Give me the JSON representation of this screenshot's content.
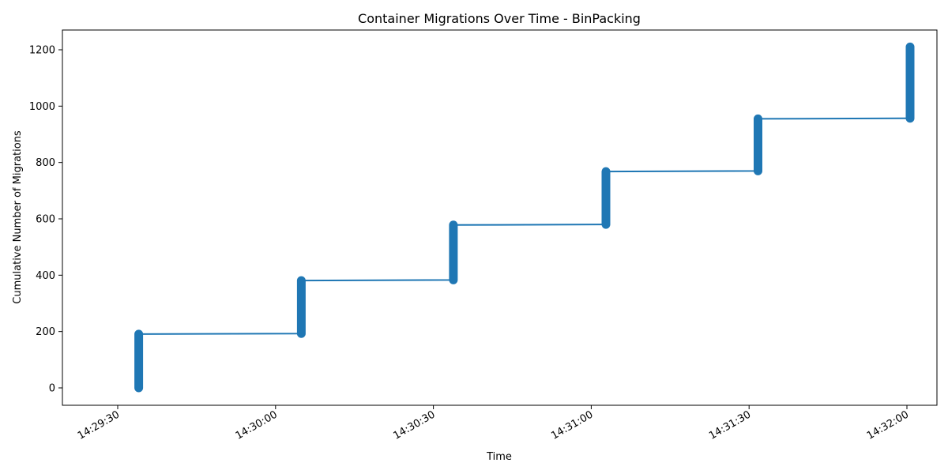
{
  "chart_data": {
    "type": "line",
    "title": "Container Migrations Over Time - BinPacking",
    "xlabel": "Time",
    "ylabel": "Cumulative Number of Migrations",
    "x_ticks": [
      "14:29:30",
      "14:30:00",
      "14:30:30",
      "14:31:00",
      "14:31:30",
      "14:32:00"
    ],
    "y_ticks": [
      "0",
      "200",
      "400",
      "600",
      "800",
      "1000",
      "1200"
    ],
    "xlim_seconds": [
      -10.3,
      118.3
    ],
    "ylim": [
      -60,
      1270
    ],
    "grid": false,
    "legend": "none",
    "color": "#1f77b4",
    "series": [
      {
        "points": [
          {
            "t": 4.0,
            "y": 0
          },
          {
            "t": 4.0,
            "y": 191
          },
          {
            "t": 34.9,
            "y": 193
          },
          {
            "t": 34.9,
            "y": 381
          },
          {
            "t": 63.8,
            "y": 383
          },
          {
            "t": 63.8,
            "y": 578
          },
          {
            "t": 92.8,
            "y": 580
          },
          {
            "t": 92.8,
            "y": 768
          },
          {
            "t": 121.7,
            "y": 770
          },
          {
            "t": 121.7,
            "y": 955
          },
          {
            "t": 150.6,
            "y": 957
          },
          {
            "t": 150.6,
            "y": 1210
          }
        ]
      }
    ]
  }
}
